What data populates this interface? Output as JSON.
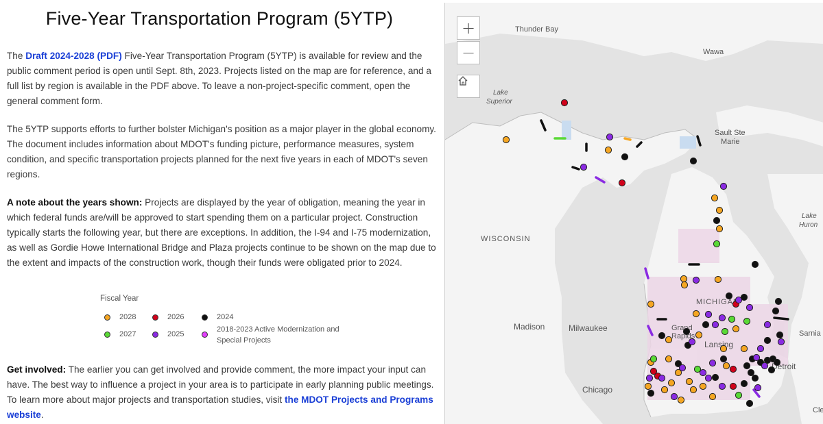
{
  "page": {
    "title": "Five-Year Transportation Program (5YTP)"
  },
  "intro": {
    "text_before": "The ",
    "link_text": "Draft 2024-2028 (PDF)",
    "text_after": " Five-Year Transportation Program (5YTP) is available for review and the public comment period is open until Sept. 8th, 2023. Projects listed on the map are for reference, and a full list by region is available in the PDF above. To leave a non-project-specific comment, open the general comment form."
  },
  "support": {
    "text": "The 5YTP supports efforts to further bolster Michigan's position as a major player in the global economy. The document includes information about MDOT's funding picture, performance measures, system condition, and specific transportation projects planned for the next five years in each of MDOT's seven regions."
  },
  "note": {
    "heading": "A note about the years shown:",
    "text": " Projects are displayed by the year of obligation, meaning the year in which federal funds are/will be approved to start spending them on a particular project. Construction typically starts the following year, but there are exceptions. In addition, the I-94 and I-75 modernization, as well as Gordie Howe International Bridge and Plaza projects continue to be shown on the map due to the extent and impacts of the construction work, though their funds were obligated prior to 2024."
  },
  "legend": {
    "title": "Fiscal Year",
    "items": [
      {
        "label": "2028",
        "color": "#f5a623"
      },
      {
        "label": "2026",
        "color": "#d0021b"
      },
      {
        "label": "2024",
        "color": "#111111"
      },
      {
        "label": "2027",
        "color": "#5ad936"
      },
      {
        "label": "2025",
        "color": "#8a2be2"
      },
      {
        "label": "2018-2023 Active Modernization and Special Projects",
        "color": "#e040fb"
      }
    ]
  },
  "involved": {
    "heading": "Get involved:",
    "text": " The earlier you can get involved and provide comment, the more impact your input can have. The best way to influence a project in your area is to participate in early planning public meetings. To learn more about major projects and transportation studies, visit ",
    "link_text": "the MDOT Projects and Programs website",
    "text_end": "."
  },
  "map": {
    "zoom_in": "+",
    "zoom_out": "−",
    "home_icon": "home-icon",
    "labels": {
      "thunder_bay": "Thunder Bay",
      "wawa": "Wawa",
      "lake_superior_1": "Lake",
      "lake_superior_2": "Superior",
      "sault_1": "Sault Ste",
      "sault_2": "Marie",
      "lake_huron_1": "Lake",
      "lake_huron_2": "Huron",
      "wisconsin": "WISCONSIN",
      "michigan": "MICHIGAN",
      "madison": "Madison",
      "milwaukee": "Milwaukee",
      "grand_rapids_1": "Grand",
      "grand_rapids_2": "Rapids",
      "lansing": "Lansing",
      "detroit": "Detroit",
      "sarnia": "Sarnia",
      "chicago": "Chicago",
      "cle": "Cle"
    },
    "colors": {
      "water": "#e3e3e3",
      "land": "#f4f4f4",
      "border": "#bdbdbd"
    }
  }
}
